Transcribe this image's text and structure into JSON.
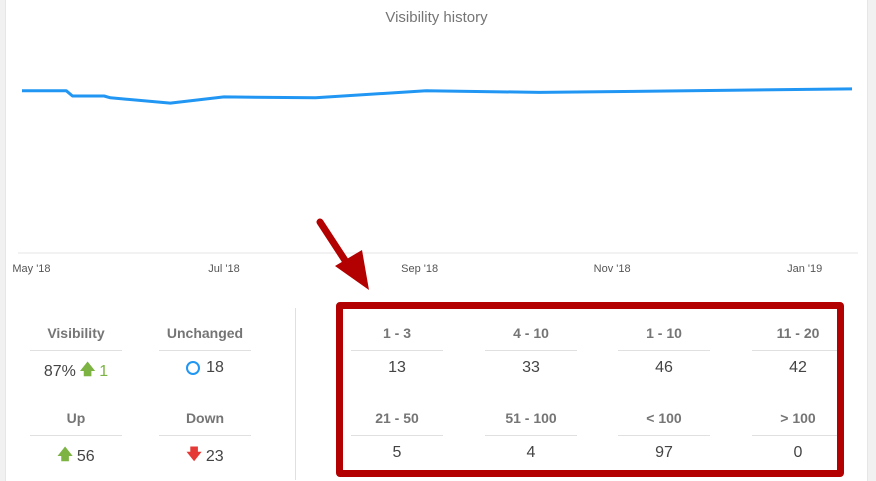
{
  "chart_data": {
    "type": "line",
    "title": "Visibility history",
    "x_ticks": [
      "May '18",
      "Jul '18",
      "Sep '18",
      "Nov '18",
      "Jan '19"
    ],
    "x": [
      "2018-04-28",
      "2018-05-12",
      "2018-05-14",
      "2018-05-24",
      "2018-05-26",
      "2018-06-14",
      "2018-07-01",
      "2018-07-30",
      "2018-09-03",
      "2018-10-09",
      "2019-01-16"
    ],
    "series": [
      {
        "values": [
          91,
          91,
          88,
          88,
          87,
          84,
          87.5,
          87,
          91,
          90,
          92
        ]
      }
    ],
    "ylim": [
      0,
      125
    ],
    "grid": false,
    "color": "#2196f3"
  },
  "stats": {
    "visibility": {
      "label": "Visibility",
      "value": "87%",
      "change": "1"
    },
    "unchanged": {
      "label": "Unchanged",
      "value": "18"
    },
    "up": {
      "label": "Up",
      "value": "56"
    },
    "down": {
      "label": "Down",
      "value": "23"
    }
  },
  "ranges": [
    {
      "label": "1 - 3",
      "value": "13"
    },
    {
      "label": "4 - 10",
      "value": "33"
    },
    {
      "label": "1 - 10",
      "value": "46"
    },
    {
      "label": "11 - 20",
      "value": "42"
    },
    {
      "label": "21 - 50",
      "value": "5"
    },
    {
      "label": "51 - 100",
      "value": "4"
    },
    {
      "label": "< 100",
      "value": "97"
    },
    {
      "label": "> 100",
      "value": "0"
    }
  ],
  "colors": {
    "line": "#2196f3",
    "highlight": "#b30000",
    "up": "#7cb342",
    "down": "#e53935"
  },
  "icons": {
    "up": "arrow-up-icon",
    "down": "arrow-down-icon",
    "unchanged": "circle-icon"
  }
}
